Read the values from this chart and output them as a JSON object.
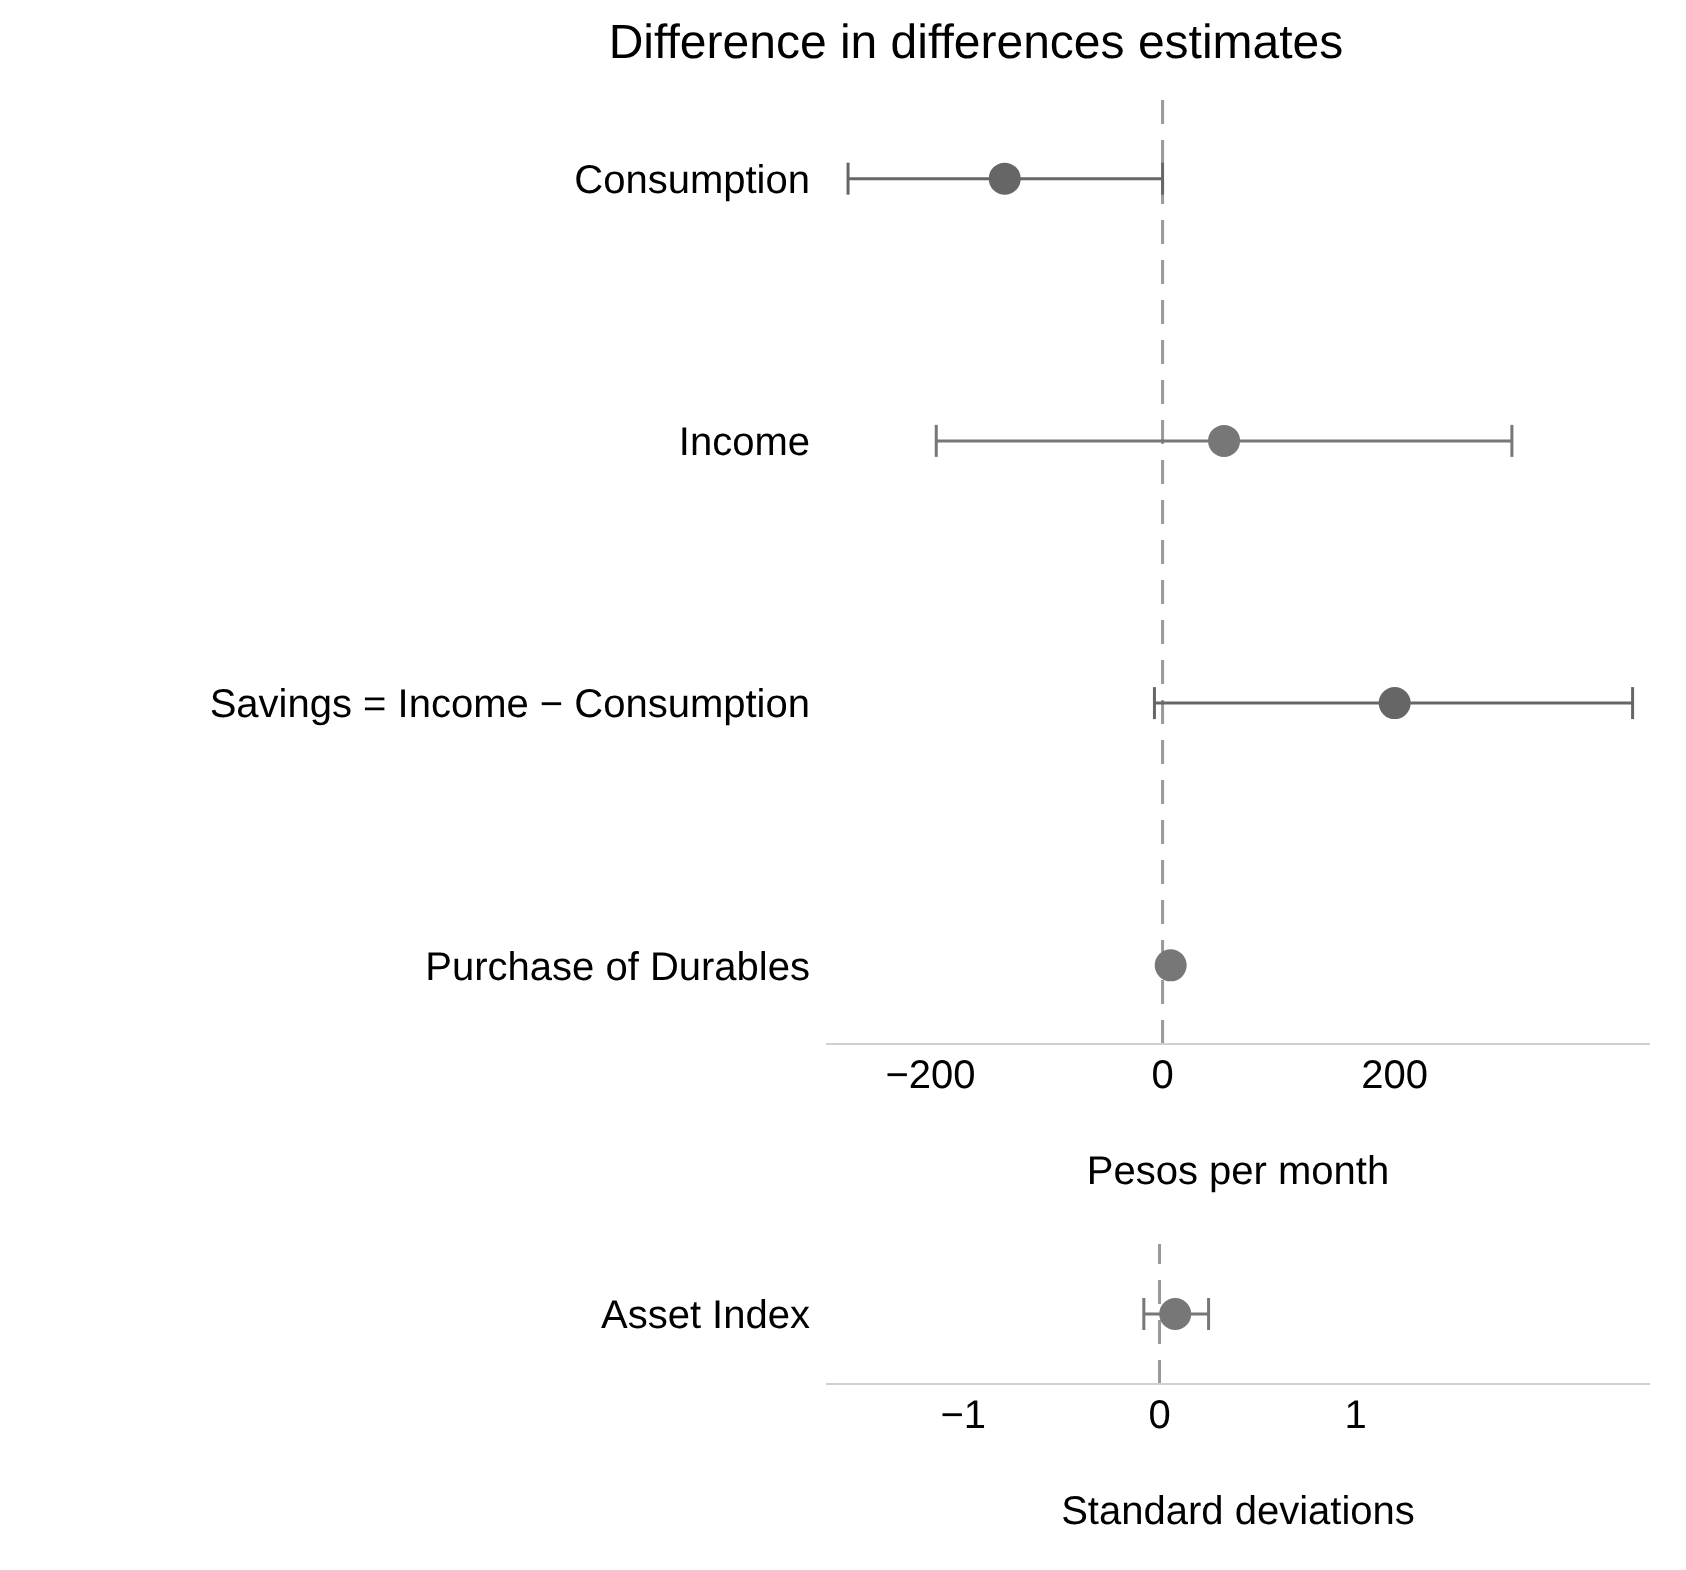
{
  "chart_data": [
    {
      "type": "scatter",
      "title": "Difference in differences estimates",
      "orientation": "horizontal",
      "categories": [
        "Consumption",
        "Income",
        "Savings = Income − Consumption",
        "Purchase of Durables"
      ],
      "series": [
        {
          "color": "#666666",
          "values": [
            -136,
            null,
            200,
            null
          ],
          "errors": [
            [
              -271,
              0
            ],
            null,
            [
              -7,
              405
            ],
            null
          ]
        },
        {
          "color": "#777777",
          "values": [
            null,
            53,
            null,
            7
          ],
          "errors": [
            null,
            [
              -195,
              301
            ],
            null,
            null
          ]
        }
      ],
      "xlim": [
        -290,
        420
      ],
      "xticks": [
        {
          "value": -200,
          "label": "−200"
        },
        0,
        200
      ],
      "xlabel": "Pesos per month",
      "marker": "circle",
      "ref_lines": [
        {
          "axis": "x",
          "value": 0,
          "color": "#999999",
          "line_style": "dashed"
        }
      ]
    },
    {
      "type": "scatter",
      "orientation": "horizontal",
      "categories": [
        "Asset Index"
      ],
      "series": [
        {
          "color": "#777777",
          "values": [
            0.08
          ],
          "errors": [
            [
              -0.08,
              0.25
            ]
          ]
        }
      ],
      "xlim": [
        -1.7,
        2.5
      ],
      "xticks": [
        {
          "value": -1,
          "label": "−1"
        },
        0,
        1
      ],
      "xlabel": "Standard deviations",
      "marker": "circle",
      "ref_lines": [
        {
          "axis": "x",
          "value": 0,
          "color": "#999999",
          "line_style": "dashed"
        }
      ]
    }
  ]
}
